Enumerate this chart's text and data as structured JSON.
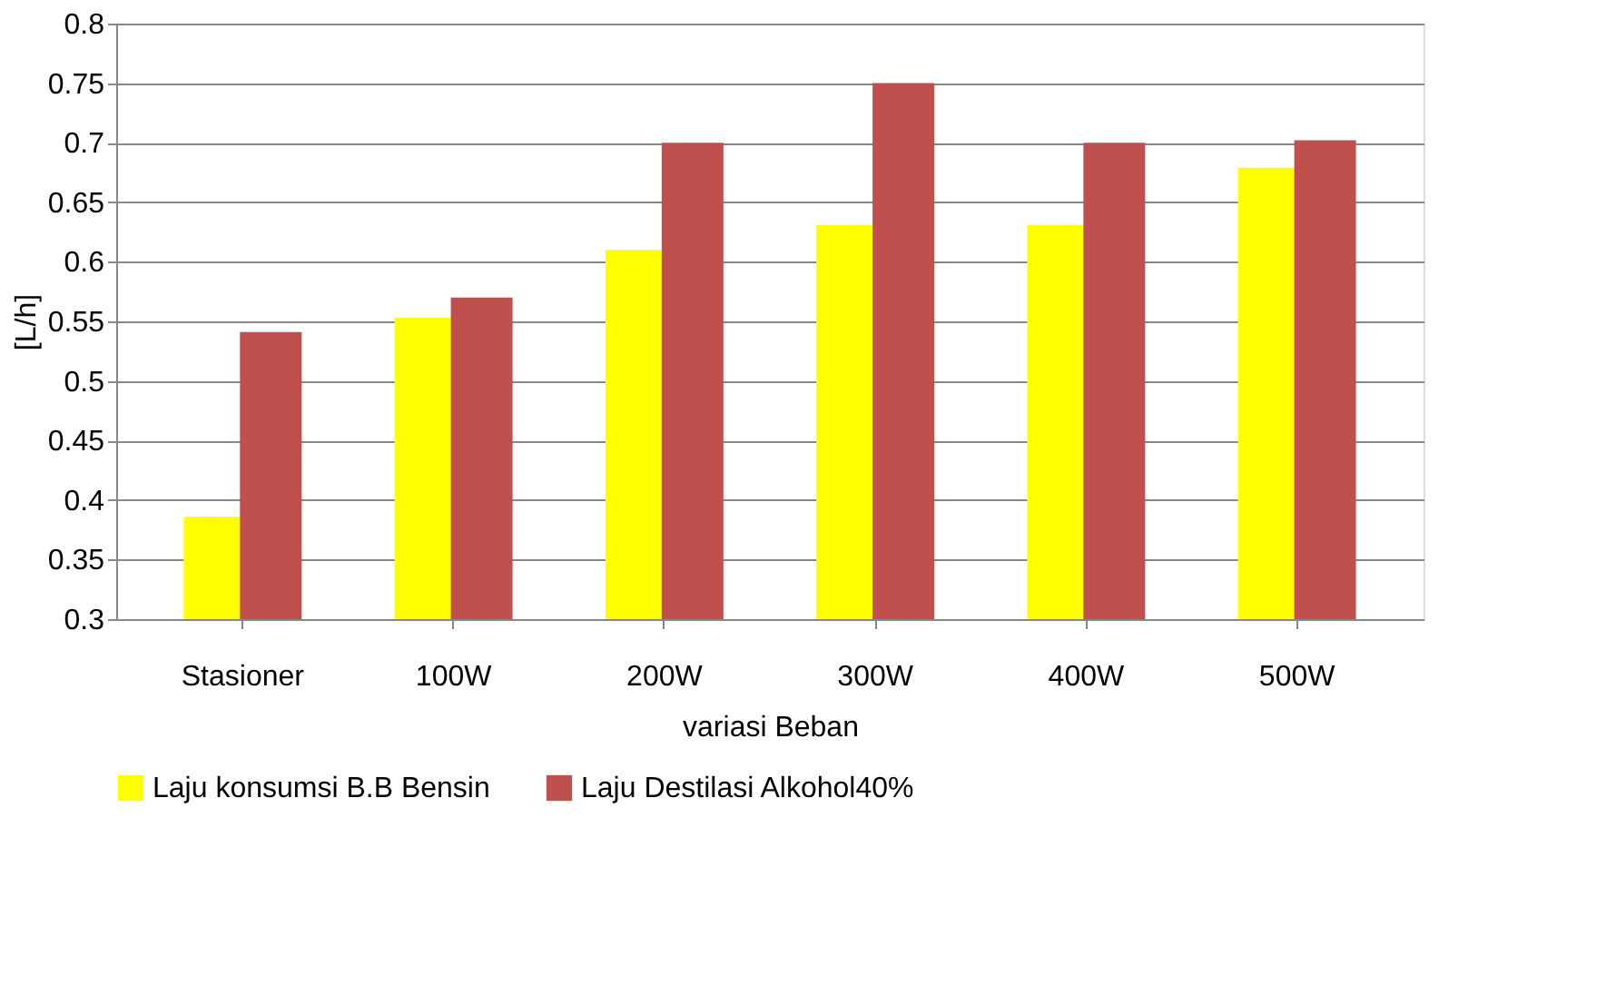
{
  "chart_data": {
    "type": "bar",
    "xlabel": "variasi Beban",
    "ylabel": "[L/h]",
    "categories": [
      "Stasioner",
      "100W",
      "200W",
      "300W",
      "400W",
      "500W"
    ],
    "series": [
      {
        "name": "Laju konsumsi B.B Bensin",
        "color": "#ffff00",
        "values": [
          0.386,
          0.553,
          0.61,
          0.631,
          0.631,
          0.679
        ]
      },
      {
        "name": "Laju Destilasi Alkohol40%",
        "color": "#c0504d",
        "values": [
          0.541,
          0.57,
          0.7,
          0.75,
          0.7,
          0.702
        ]
      }
    ],
    "ylim": [
      0.3,
      0.8
    ],
    "yticks": [
      0.3,
      0.35,
      0.4,
      0.45,
      0.5,
      0.55,
      0.6,
      0.65,
      0.7,
      0.75,
      0.8
    ],
    "grid": "y",
    "legend": "bottom"
  }
}
